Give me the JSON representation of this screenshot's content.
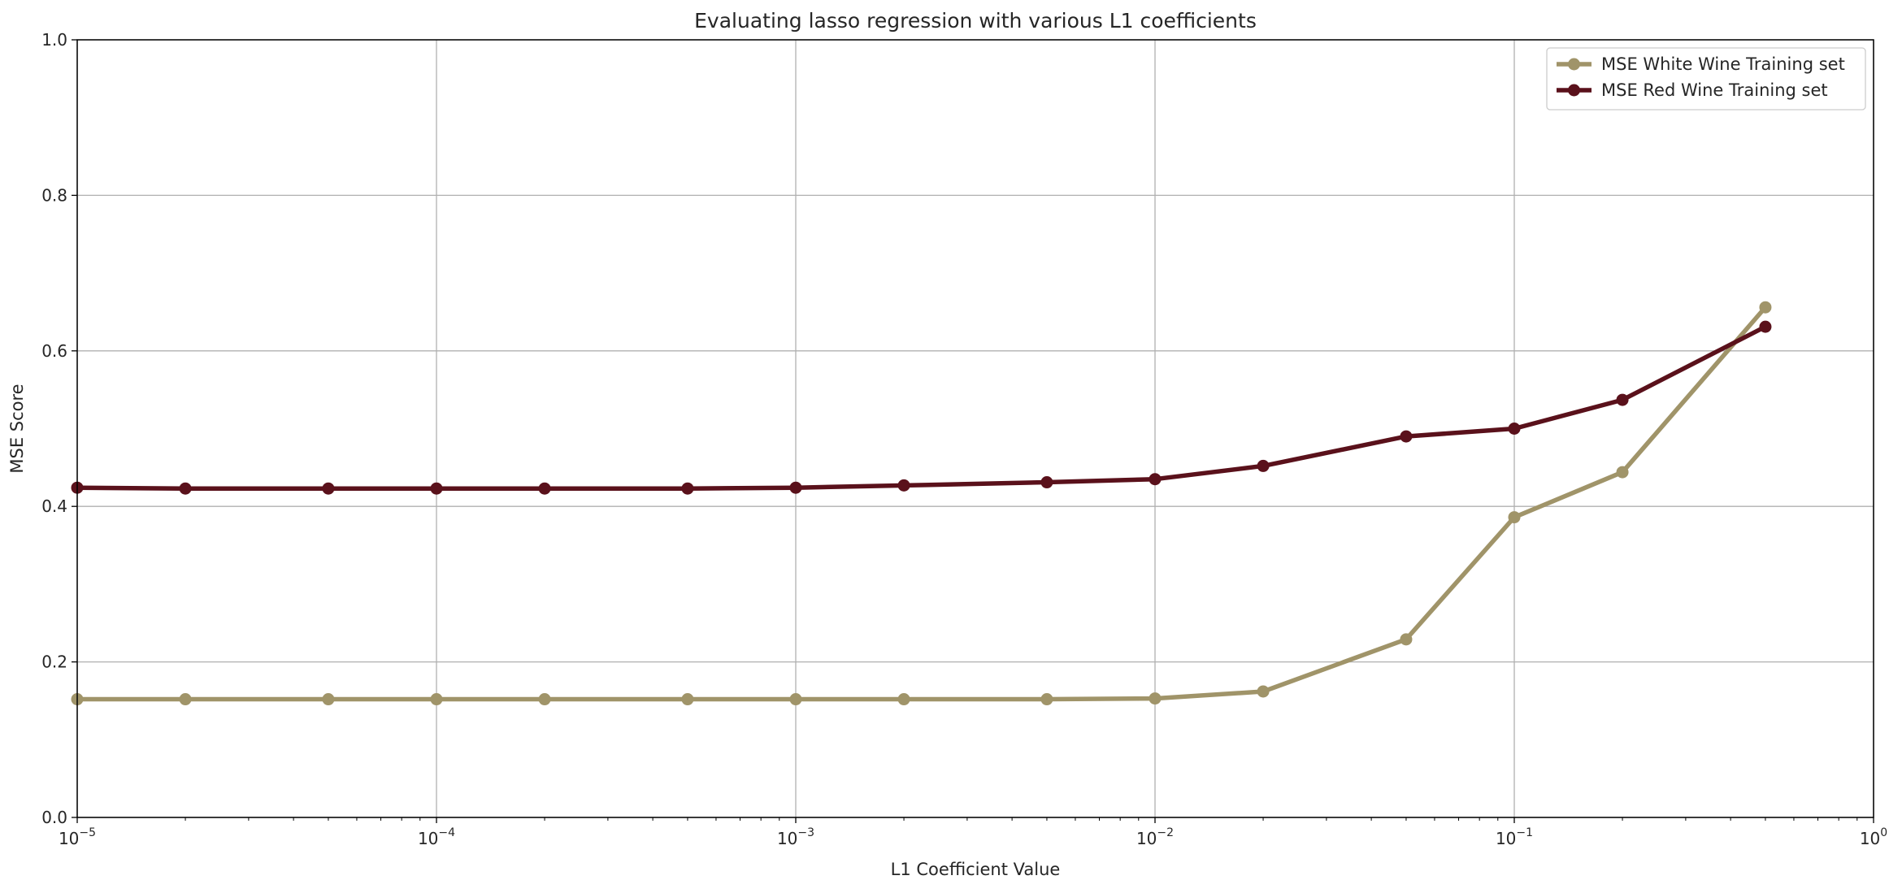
{
  "chart_data": {
    "type": "line",
    "title": "Evaluating lasso regression with various L1 coefficients",
    "xlabel": "L1 Coefficient Value",
    "ylabel": "MSE Score",
    "xscale": "log",
    "xlim": [
      1e-05,
      1
    ],
    "ylim": [
      0.0,
      1.0
    ],
    "grid": true,
    "legend_position": "top-right",
    "x_ticks": [
      {
        "base": "10",
        "exp": "−5",
        "value": 1e-05
      },
      {
        "base": "10",
        "exp": "−4",
        "value": 0.0001
      },
      {
        "base": "10",
        "exp": "−3",
        "value": 0.001
      },
      {
        "base": "10",
        "exp": "−2",
        "value": 0.01
      },
      {
        "base": "10",
        "exp": "−1",
        "value": 0.1
      },
      {
        "base": "10",
        "exp": "0",
        "value": 1
      }
    ],
    "y_ticks": [
      {
        "label": "0.0",
        "value": 0.0
      },
      {
        "label": "0.2",
        "value": 0.2
      },
      {
        "label": "0.4",
        "value": 0.4
      },
      {
        "label": "0.6",
        "value": 0.6
      },
      {
        "label": "0.8",
        "value": 0.8
      },
      {
        "label": "1.0",
        "value": 1.0
      }
    ],
    "x": [
      1e-05,
      2e-05,
      5e-05,
      0.0001,
      0.0002,
      0.0005,
      0.001,
      0.002,
      0.005,
      0.01,
      0.02,
      0.05,
      0.1,
      0.2,
      0.5
    ],
    "series": [
      {
        "name": "MSE White Wine Training set",
        "color": "#a09469",
        "values": [
          0.152,
          0.152,
          0.152,
          0.152,
          0.152,
          0.152,
          0.152,
          0.152,
          0.152,
          0.153,
          0.162,
          0.229,
          0.386,
          0.444,
          0.656
        ]
      },
      {
        "name": "MSE Red Wine Training set",
        "color": "#5a111b",
        "values": [
          0.424,
          0.423,
          0.423,
          0.423,
          0.423,
          0.423,
          0.424,
          0.427,
          0.431,
          0.435,
          0.452,
          0.49,
          0.5,
          0.537,
          0.631
        ]
      }
    ]
  }
}
